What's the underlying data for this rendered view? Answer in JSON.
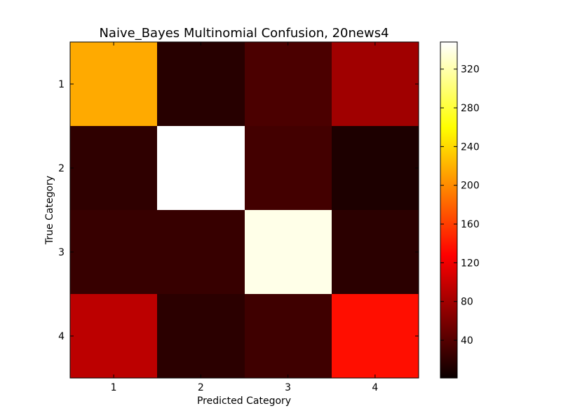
{
  "chart_data": {
    "type": "heatmap",
    "title": "Naive_Bayes Multinomial Confusion, 20news4",
    "xlabel": "Predicted Category",
    "ylabel": "True Category",
    "x_categories": [
      "1",
      "2",
      "3",
      "4"
    ],
    "y_categories": [
      "1",
      "2",
      "3",
      "4"
    ],
    "matrix": [
      [
        216,
        6,
        24,
        66
      ],
      [
        10,
        348,
        20,
        1
      ],
      [
        14,
        14,
        340,
        8
      ],
      [
        80,
        8,
        18,
        135
      ]
    ],
    "colorbar": {
      "colormap": "hot",
      "min": 1,
      "max": 348,
      "ticks": [
        40,
        80,
        120,
        160,
        200,
        240,
        280,
        320
      ],
      "tick_labels": [
        "40",
        "80",
        "120",
        "160",
        "200",
        "240",
        "280",
        "320"
      ]
    }
  }
}
